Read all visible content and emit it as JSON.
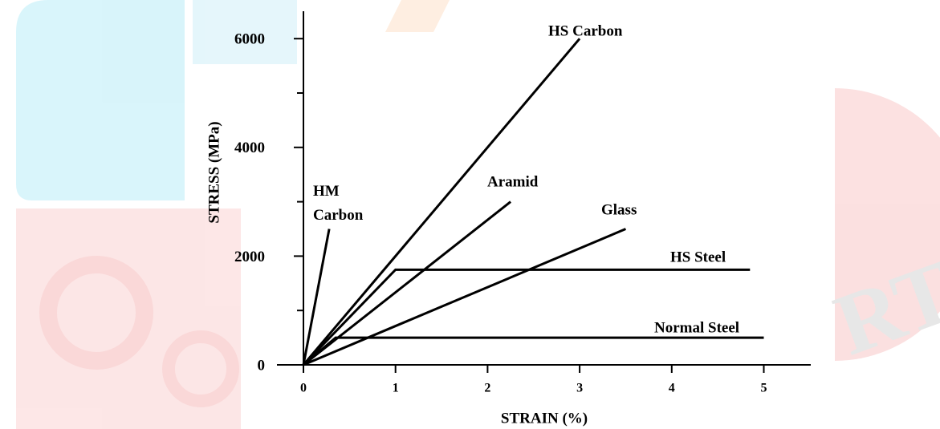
{
  "chart_data": {
    "type": "line",
    "x_label": "STRAIN (%)",
    "y_label": "STRESS (MPa)",
    "xlim": [
      0,
      5.5
    ],
    "ylim": [
      0,
      6500
    ],
    "xticks": [
      0,
      1,
      2,
      3,
      4,
      5
    ],
    "yticks": [
      0,
      2000,
      4000,
      6000
    ],
    "y_minor_ticks": [
      1000,
      3000,
      5000
    ],
    "series": [
      {
        "name": "HM Carbon",
        "color": "#000000",
        "x": [
          0,
          0.28
        ],
        "values": [
          0,
          2500
        ]
      },
      {
        "name": "HS Carbon",
        "color": "#000000",
        "x": [
          0,
          3
        ],
        "values": [
          0,
          6000
        ]
      },
      {
        "name": "Aramid",
        "color": "#000000",
        "x": [
          0,
          2.25
        ],
        "values": [
          0,
          3000
        ]
      },
      {
        "name": "Glass",
        "color": "#000000",
        "x": [
          0,
          3.5
        ],
        "values": [
          0,
          2500
        ]
      },
      {
        "name": "HS Steel",
        "color": "#000000",
        "x": [
          0,
          1,
          4.85
        ],
        "values": [
          0,
          1750,
          1750
        ]
      },
      {
        "name": "Normal Steel",
        "color": "#000000",
        "x": [
          0,
          0.35,
          5
        ],
        "values": [
          0,
          500,
          500
        ]
      }
    ]
  }
}
